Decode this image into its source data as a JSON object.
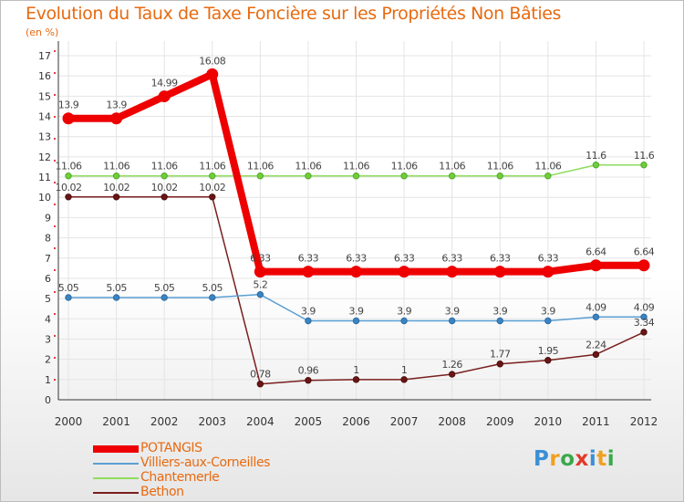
{
  "title": "Evolution du Taux de Taxe Foncière sur les Propriétés Non Bâties",
  "unit": "(en %)",
  "logo": {
    "text": "Proxiti",
    "colors": [
      "#3a8fd6",
      "#f0a020",
      "#3aa84a",
      "#e03a2a",
      "#3a8fd6",
      "#f0a020",
      "#3aa84a"
    ]
  },
  "chart_data": {
    "type": "line",
    "title": "Evolution du Taux de Taxe Foncière sur les Propriétés Non Bâties",
    "ylabel": "(en %)",
    "xlabel": "",
    "ylim": [
      0,
      17
    ],
    "yticks": [
      0,
      1,
      2,
      3,
      4,
      5,
      6,
      7,
      8,
      9,
      10,
      11,
      12,
      13,
      14,
      15,
      16,
      17
    ],
    "x": [
      "2000",
      "2001",
      "2002",
      "2003",
      "2004",
      "2005",
      "2006",
      "2007",
      "2008",
      "2009",
      "2010",
      "2011",
      "2012"
    ],
    "legend_position": "bottom-left",
    "series": [
      {
        "name": "POTANGIS",
        "color": "#ee0000",
        "values": [
          13.9,
          13.9,
          14.99,
          16.08,
          6.33,
          6.33,
          6.33,
          6.33,
          6.33,
          6.33,
          6.33,
          6.64,
          6.64
        ],
        "labels": [
          "13.9",
          "13.9",
          "14.99",
          "16.08",
          "6.33",
          "6.33",
          "6.33",
          "6.33",
          "6.33",
          "6.33",
          "6.33",
          "6.64",
          "6.64"
        ]
      },
      {
        "name": "Villiers-aux-Corneilles",
        "color": "#5a9fd4",
        "values": [
          5.05,
          5.05,
          5.05,
          5.05,
          5.2,
          3.9,
          3.9,
          3.9,
          3.9,
          3.9,
          3.9,
          4.09,
          4.09
        ],
        "labels": [
          "5.05",
          "5.05",
          "5.05",
          "5.05",
          "5.2",
          "3.9",
          "3.9",
          "3.9",
          "3.9",
          "3.9",
          "3.9",
          "4.09",
          "4.09"
        ]
      },
      {
        "name": "Chantemerle",
        "color": "#8fdc5c",
        "values": [
          11.06,
          11.06,
          11.06,
          11.06,
          11.06,
          11.06,
          11.06,
          11.06,
          11.06,
          11.06,
          11.06,
          11.6,
          11.6
        ],
        "labels": [
          "11.06",
          "11.06",
          "11.06",
          "11.06",
          "11.06",
          "11.06",
          "11.06",
          "11.06",
          "11.06",
          "11.06",
          "11.06",
          "11.6",
          "11.6"
        ]
      },
      {
        "name": "Bethon",
        "color": "#7a1e1e",
        "values": [
          10.02,
          10.02,
          10.02,
          10.02,
          0.78,
          0.96,
          1,
          1,
          1.26,
          1.77,
          1.95,
          2.24,
          3.34
        ],
        "labels": [
          "10.02",
          "10.02",
          "10.02",
          "10.02",
          "0.78",
          "0.96",
          "1",
          "1",
          "1.26",
          "1.77",
          "1.95",
          "2.24",
          "3.34"
        ]
      }
    ]
  }
}
